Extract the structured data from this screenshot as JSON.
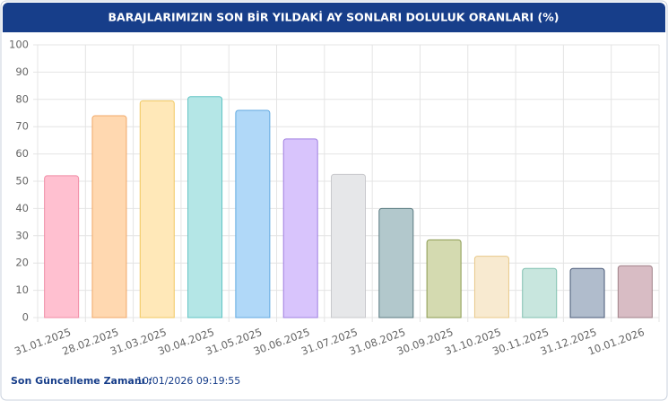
{
  "chart_data": {
    "type": "bar",
    "title": "BARAJLARIMIZIN SON BİR YILDAKİ AY SONLARI DOLULUK ORANLARI (%)",
    "categories": [
      "31.01.2025",
      "28.02.2025",
      "31.03.2025",
      "30.04.2025",
      "31.05.2025",
      "30.06.2025",
      "31.07.2025",
      "31.08.2025",
      "30.09.2025",
      "31.10.2025",
      "30.11.2025",
      "31.12.2025",
      "10.01.2026"
    ],
    "values": [
      52,
      74,
      79.5,
      81,
      76,
      65.5,
      52.5,
      40,
      28.5,
      22.5,
      18,
      18,
      19
    ],
    "colors": [
      "#ffc0d0",
      "#ffd8b0",
      "#ffe8b8",
      "#b4e6e6",
      "#b0d8f8",
      "#d8c4fc",
      "#e6e7e9",
      "#b2c8cc",
      "#d4dab0",
      "#f8ead0",
      "#c8e6de",
      "#b0bccc",
      "#d8bcc4"
    ],
    "border_colors": [
      "#f08aa4",
      "#f0a868",
      "#f0c860",
      "#60c4c4",
      "#60a8e0",
      "#a080e0",
      "#c8c8cc",
      "#5a7a80",
      "#8a9a50",
      "#e8c888",
      "#80c0b0",
      "#4a5a78",
      "#a08088"
    ],
    "ylim": [
      0,
      100
    ],
    "yticks": [
      0,
      10,
      20,
      30,
      40,
      50,
      60,
      70,
      80,
      90,
      100
    ],
    "grid": true
  },
  "footer": {
    "label": "Son Güncelleme Zamanı :",
    "value": "10/01/2026 09:19:55"
  }
}
